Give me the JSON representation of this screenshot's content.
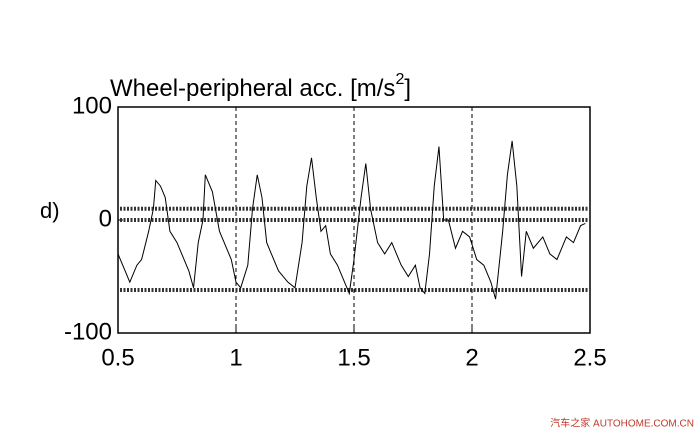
{
  "chart_data": {
    "type": "line",
    "title": {
      "text": "Wheel-peripheral acc. [m/s",
      "superscript": "2",
      "suffix": "]"
    },
    "panel_label": "d)",
    "watermark": "汽车之家 AUTOHOME.COM.CN",
    "xlim": [
      0.5,
      2.5
    ],
    "xticks": [
      0.5,
      1,
      1.5,
      2,
      2.5
    ],
    "ylim": [
      -100,
      100
    ],
    "yticks": [
      -100,
      0,
      100
    ],
    "grid": "x",
    "hlines": [
      10,
      0,
      -62
    ],
    "series": [
      {
        "color": "#000000",
        "x": [
          0.5,
          0.52,
          0.55,
          0.58,
          0.6,
          0.63,
          0.65,
          0.66,
          0.68,
          0.7,
          0.72,
          0.75,
          0.78,
          0.8,
          0.82,
          0.84,
          0.86,
          0.87,
          0.9,
          0.93,
          0.95,
          0.98,
          1.0,
          1.02,
          1.05,
          1.07,
          1.09,
          1.11,
          1.13,
          1.15,
          1.18,
          1.22,
          1.25,
          1.28,
          1.3,
          1.32,
          1.34,
          1.36,
          1.38,
          1.4,
          1.43,
          1.46,
          1.48,
          1.5,
          1.53,
          1.55,
          1.57,
          1.6,
          1.63,
          1.66,
          1.7,
          1.73,
          1.76,
          1.78,
          1.8,
          1.82,
          1.84,
          1.86,
          1.88,
          1.9,
          1.93,
          1.96,
          1.99,
          2.02,
          2.05,
          2.08,
          2.1,
          2.13,
          2.15,
          2.17,
          2.19,
          2.21,
          2.23,
          2.26,
          2.3,
          2.33,
          2.36,
          2.4,
          2.43,
          2.46,
          2.48
        ],
        "values": [
          -30,
          -40,
          -55,
          -40,
          -35,
          -10,
          10,
          35,
          30,
          20,
          -10,
          -20,
          -35,
          -45,
          -60,
          -20,
          0,
          40,
          25,
          -10,
          -20,
          -35,
          -55,
          -60,
          -40,
          10,
          40,
          20,
          -20,
          -30,
          -45,
          -55,
          -60,
          -20,
          30,
          55,
          20,
          -10,
          -5,
          -30,
          -40,
          -55,
          -65,
          -35,
          20,
          50,
          10,
          -20,
          -30,
          -20,
          -40,
          -50,
          -40,
          -60,
          -65,
          -30,
          30,
          65,
          0,
          0,
          -25,
          -10,
          -15,
          -35,
          -40,
          -55,
          -70,
          -10,
          40,
          70,
          30,
          -50,
          -10,
          -25,
          -15,
          -30,
          -35,
          -15,
          -20,
          -5,
          -3
        ]
      }
    ]
  }
}
